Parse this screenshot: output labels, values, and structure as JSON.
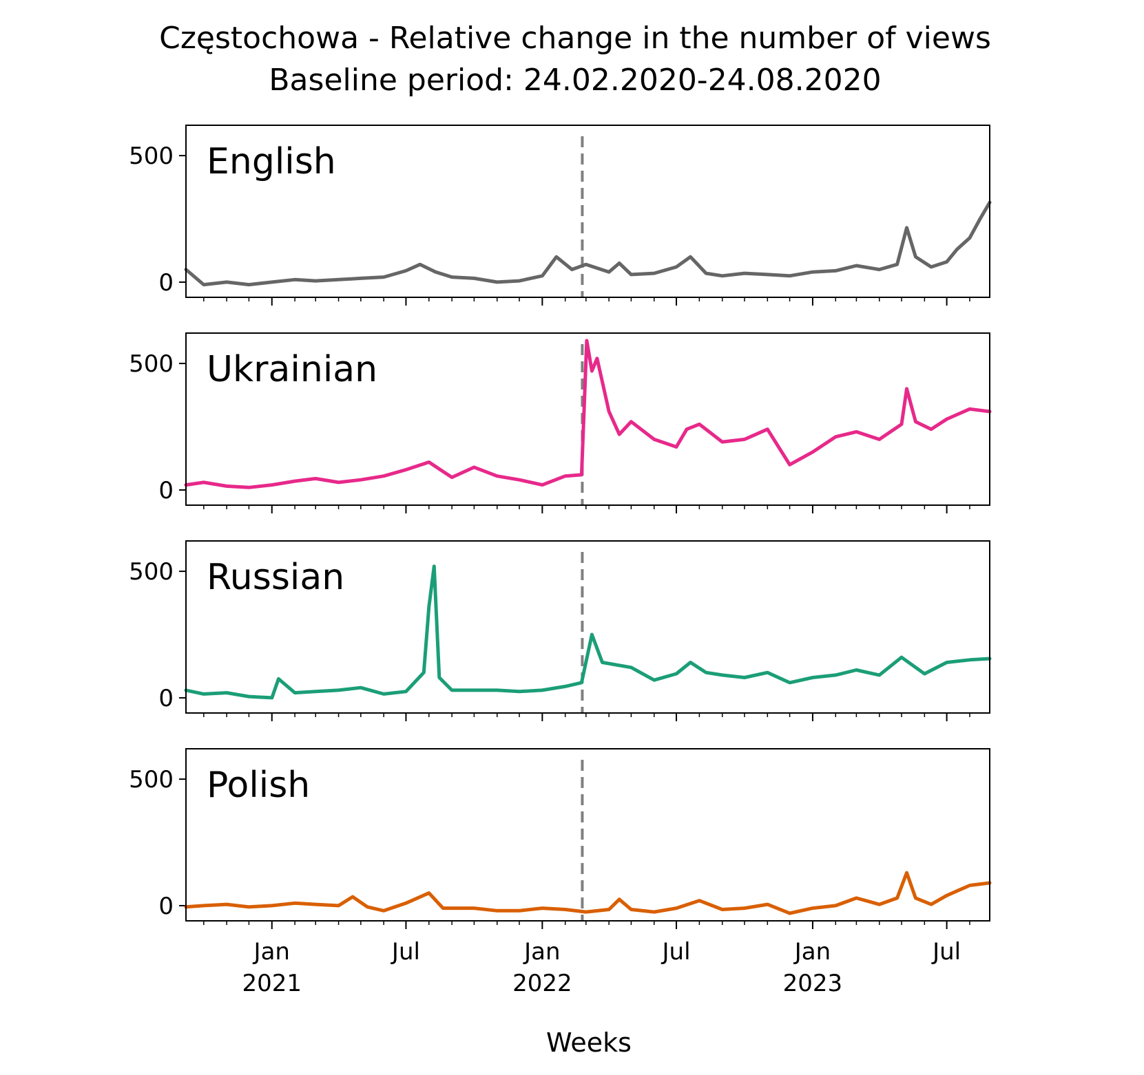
{
  "chart_data": {
    "type": "line",
    "title": "Częstochowa - Relative change in the number of views",
    "subtitle": "Baseline period: 24.02.2020-24.08.2020",
    "xlabel": "Weeks",
    "ylim": [
      -60,
      620
    ],
    "y_ticks": [
      0,
      500
    ],
    "x_range": [
      "2020-09-07",
      "2023-08-28"
    ],
    "x_ticks": [
      {
        "date": "2021-01-01",
        "label": "Jan",
        "year": "2021"
      },
      {
        "date": "2021-07-01",
        "label": "Jul",
        "year": ""
      },
      {
        "date": "2022-01-01",
        "label": "Jan",
        "year": "2022"
      },
      {
        "date": "2022-07-01",
        "label": "Jul",
        "year": ""
      },
      {
        "date": "2023-01-01",
        "label": "Jan",
        "year": "2023"
      },
      {
        "date": "2023-07-01",
        "label": "Jul",
        "year": ""
      }
    ],
    "reference_line": {
      "date": "2022-02-24",
      "color": "#808080",
      "style": "dashed"
    },
    "series": [
      {
        "name": "English",
        "color": "#666666",
        "points": [
          [
            "2020-09-07",
            50
          ],
          [
            "2020-10-01",
            -10
          ],
          [
            "2020-11-01",
            0
          ],
          [
            "2020-12-01",
            -10
          ],
          [
            "2021-01-01",
            0
          ],
          [
            "2021-02-01",
            10
          ],
          [
            "2021-03-01",
            5
          ],
          [
            "2021-04-01",
            10
          ],
          [
            "2021-05-01",
            15
          ],
          [
            "2021-06-01",
            20
          ],
          [
            "2021-07-01",
            45
          ],
          [
            "2021-07-20",
            70
          ],
          [
            "2021-08-10",
            40
          ],
          [
            "2021-09-01",
            20
          ],
          [
            "2021-10-01",
            15
          ],
          [
            "2021-11-01",
            0
          ],
          [
            "2021-12-01",
            5
          ],
          [
            "2022-01-01",
            25
          ],
          [
            "2022-01-20",
            100
          ],
          [
            "2022-02-10",
            50
          ],
          [
            "2022-03-01",
            70
          ],
          [
            "2022-04-01",
            40
          ],
          [
            "2022-04-15",
            75
          ],
          [
            "2022-05-01",
            30
          ],
          [
            "2022-06-01",
            35
          ],
          [
            "2022-07-01",
            60
          ],
          [
            "2022-07-20",
            100
          ],
          [
            "2022-08-10",
            35
          ],
          [
            "2022-09-01",
            25
          ],
          [
            "2022-10-01",
            35
          ],
          [
            "2022-11-01",
            30
          ],
          [
            "2022-12-01",
            25
          ],
          [
            "2023-01-01",
            40
          ],
          [
            "2023-02-01",
            45
          ],
          [
            "2023-03-01",
            65
          ],
          [
            "2023-04-01",
            50
          ],
          [
            "2023-04-25",
            70
          ],
          [
            "2023-05-08",
            215
          ],
          [
            "2023-05-20",
            100
          ],
          [
            "2023-06-10",
            60
          ],
          [
            "2023-07-01",
            80
          ],
          [
            "2023-07-15",
            130
          ],
          [
            "2023-08-01",
            175
          ],
          [
            "2023-08-15",
            250
          ],
          [
            "2023-08-28",
            315
          ]
        ]
      },
      {
        "name": "Ukrainian",
        "color": "#e7298a",
        "points": [
          [
            "2020-09-07",
            20
          ],
          [
            "2020-10-01",
            30
          ],
          [
            "2020-11-01",
            15
          ],
          [
            "2020-12-01",
            10
          ],
          [
            "2021-01-01",
            20
          ],
          [
            "2021-02-01",
            35
          ],
          [
            "2021-03-01",
            45
          ],
          [
            "2021-04-01",
            30
          ],
          [
            "2021-05-01",
            40
          ],
          [
            "2021-06-01",
            55
          ],
          [
            "2021-07-01",
            80
          ],
          [
            "2021-08-01",
            110
          ],
          [
            "2021-09-01",
            50
          ],
          [
            "2021-10-01",
            90
          ],
          [
            "2021-11-01",
            55
          ],
          [
            "2021-12-01",
            40
          ],
          [
            "2022-01-01",
            20
          ],
          [
            "2022-02-01",
            55
          ],
          [
            "2022-02-23",
            60
          ],
          [
            "2022-03-02",
            590
          ],
          [
            "2022-03-09",
            470
          ],
          [
            "2022-03-16",
            520
          ],
          [
            "2022-04-01",
            310
          ],
          [
            "2022-04-15",
            220
          ],
          [
            "2022-05-01",
            270
          ],
          [
            "2022-06-01",
            200
          ],
          [
            "2022-07-01",
            170
          ],
          [
            "2022-07-15",
            240
          ],
          [
            "2022-08-01",
            260
          ],
          [
            "2022-09-01",
            190
          ],
          [
            "2022-10-01",
            200
          ],
          [
            "2022-11-01",
            240
          ],
          [
            "2022-12-01",
            100
          ],
          [
            "2023-01-01",
            150
          ],
          [
            "2023-02-01",
            210
          ],
          [
            "2023-03-01",
            230
          ],
          [
            "2023-04-01",
            200
          ],
          [
            "2023-05-01",
            260
          ],
          [
            "2023-05-08",
            400
          ],
          [
            "2023-05-20",
            270
          ],
          [
            "2023-06-10",
            240
          ],
          [
            "2023-07-01",
            280
          ],
          [
            "2023-08-01",
            320
          ],
          [
            "2023-08-28",
            310
          ]
        ]
      },
      {
        "name": "Russian",
        "color": "#1b9e77",
        "points": [
          [
            "2020-09-07",
            30
          ],
          [
            "2020-10-01",
            15
          ],
          [
            "2020-11-01",
            20
          ],
          [
            "2020-12-01",
            5
          ],
          [
            "2021-01-01",
            0
          ],
          [
            "2021-01-10",
            75
          ],
          [
            "2021-02-01",
            20
          ],
          [
            "2021-03-01",
            25
          ],
          [
            "2021-04-01",
            30
          ],
          [
            "2021-05-01",
            40
          ],
          [
            "2021-06-01",
            15
          ],
          [
            "2021-07-01",
            25
          ],
          [
            "2021-07-25",
            100
          ],
          [
            "2021-08-01",
            360
          ],
          [
            "2021-08-08",
            520
          ],
          [
            "2021-08-15",
            80
          ],
          [
            "2021-09-01",
            30
          ],
          [
            "2021-10-01",
            30
          ],
          [
            "2021-11-01",
            30
          ],
          [
            "2021-12-01",
            25
          ],
          [
            "2022-01-01",
            30
          ],
          [
            "2022-02-01",
            45
          ],
          [
            "2022-02-23",
            60
          ],
          [
            "2022-03-09",
            250
          ],
          [
            "2022-03-23",
            140
          ],
          [
            "2022-05-01",
            120
          ],
          [
            "2022-06-01",
            70
          ],
          [
            "2022-07-01",
            95
          ],
          [
            "2022-07-20",
            140
          ],
          [
            "2022-08-10",
            100
          ],
          [
            "2022-09-01",
            90
          ],
          [
            "2022-10-01",
            80
          ],
          [
            "2022-11-01",
            100
          ],
          [
            "2022-12-01",
            60
          ],
          [
            "2023-01-01",
            80
          ],
          [
            "2023-02-01",
            90
          ],
          [
            "2023-03-01",
            110
          ],
          [
            "2023-04-01",
            90
          ],
          [
            "2023-05-01",
            160
          ],
          [
            "2023-06-01",
            95
          ],
          [
            "2023-07-01",
            140
          ],
          [
            "2023-08-01",
            150
          ],
          [
            "2023-08-28",
            155
          ]
        ]
      },
      {
        "name": "Polish",
        "color": "#d95f02",
        "points": [
          [
            "2020-09-07",
            -5
          ],
          [
            "2020-10-01",
            0
          ],
          [
            "2020-11-01",
            5
          ],
          [
            "2020-12-01",
            -5
          ],
          [
            "2021-01-01",
            0
          ],
          [
            "2021-02-01",
            10
          ],
          [
            "2021-03-01",
            5
          ],
          [
            "2021-04-01",
            0
          ],
          [
            "2021-04-20",
            35
          ],
          [
            "2021-05-10",
            -5
          ],
          [
            "2021-06-01",
            -20
          ],
          [
            "2021-07-01",
            10
          ],
          [
            "2021-08-01",
            50
          ],
          [
            "2021-08-20",
            -10
          ],
          [
            "2021-10-01",
            -10
          ],
          [
            "2021-11-01",
            -20
          ],
          [
            "2021-12-01",
            -20
          ],
          [
            "2022-01-01",
            -10
          ],
          [
            "2022-02-01",
            -15
          ],
          [
            "2022-03-01",
            -25
          ],
          [
            "2022-04-01",
            -15
          ],
          [
            "2022-04-15",
            25
          ],
          [
            "2022-05-01",
            -15
          ],
          [
            "2022-06-01",
            -25
          ],
          [
            "2022-07-01",
            -10
          ],
          [
            "2022-08-01",
            20
          ],
          [
            "2022-09-01",
            -15
          ],
          [
            "2022-10-01",
            -10
          ],
          [
            "2022-11-01",
            5
          ],
          [
            "2022-12-01",
            -30
          ],
          [
            "2023-01-01",
            -10
          ],
          [
            "2023-02-01",
            0
          ],
          [
            "2023-03-01",
            30
          ],
          [
            "2023-04-01",
            5
          ],
          [
            "2023-04-25",
            30
          ],
          [
            "2023-05-08",
            130
          ],
          [
            "2023-05-20",
            30
          ],
          [
            "2023-06-10",
            5
          ],
          [
            "2023-07-01",
            40
          ],
          [
            "2023-08-01",
            80
          ],
          [
            "2023-08-28",
            90
          ]
        ]
      }
    ]
  }
}
